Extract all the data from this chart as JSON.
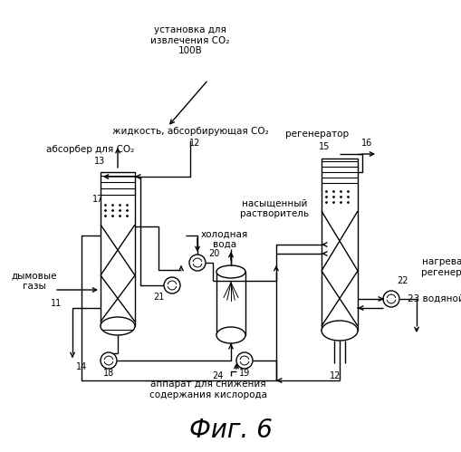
{
  "background_color": "#ffffff",
  "line_color": "#000000",
  "title": "Фиг. 6",
  "label_top": "установка для\nизвлечения CO₂\n100B",
  "label_absorber_liquid": "жидкость, абсорбирующая CO₂",
  "label_absorber": "абсорбер для CO₂",
  "label_regenerator": "регенератор",
  "label_sat_solvent": "насыщенный\nрастворитель",
  "label_cold_water": "холодная\nвода",
  "label_flue_gas": "дымовые\nгазы",
  "label_regen_heater": "нагреватель\nрегенерации",
  "label_water_steam": "водяной пар",
  "label_oxygen": "аппарат для снижения\nсодержания кислорода"
}
